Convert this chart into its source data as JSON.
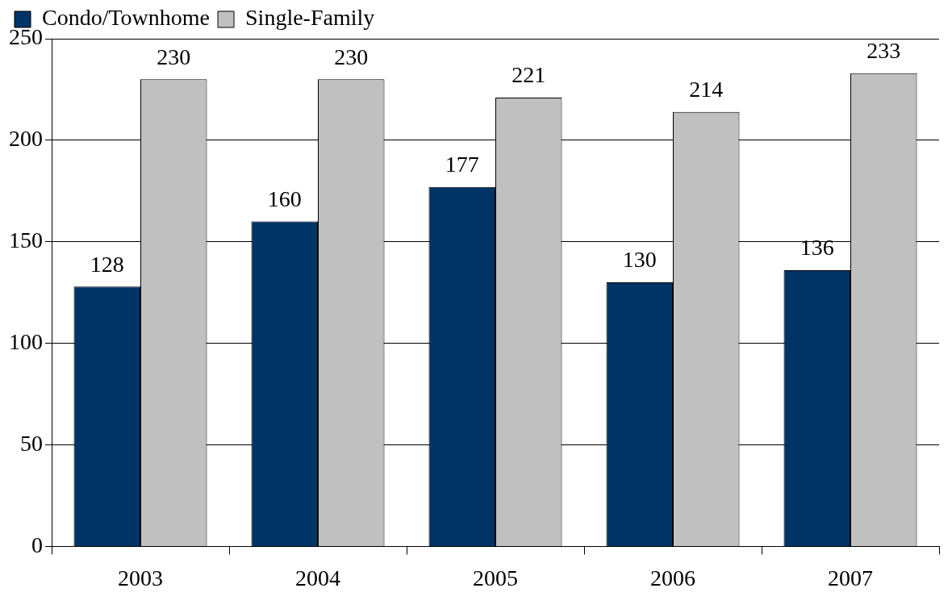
{
  "chart_data": {
    "type": "bar",
    "categories": [
      "2003",
      "2004",
      "2005",
      "2006",
      "2007"
    ],
    "series": [
      {
        "name": "Condo/Townhome",
        "color": "#003366",
        "values": [
          128,
          160,
          177,
          130,
          136
        ]
      },
      {
        "name": "Single-Family",
        "color": "#c0c0c0",
        "values": [
          230,
          230,
          221,
          214,
          233
        ]
      }
    ],
    "ylim": [
      0,
      250
    ],
    "yticks": [
      0,
      50,
      100,
      150,
      200,
      250
    ],
    "grid": "y",
    "legend": "top left",
    "data_labels": true
  }
}
